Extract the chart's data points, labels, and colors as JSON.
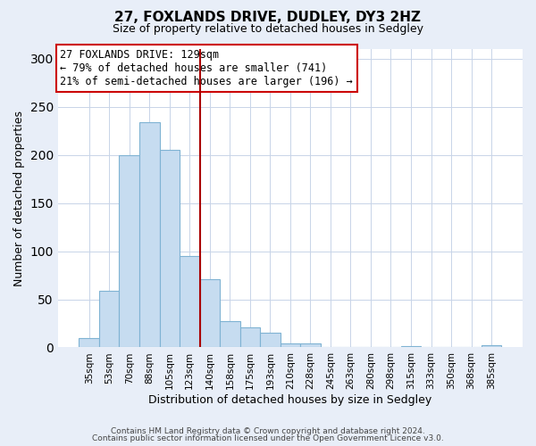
{
  "title": "27, FOXLANDS DRIVE, DUDLEY, DY3 2HZ",
  "subtitle": "Size of property relative to detached houses in Sedgley",
  "xlabel": "Distribution of detached houses by size in Sedgley",
  "ylabel": "Number of detached properties",
  "bar_labels": [
    "35sqm",
    "53sqm",
    "70sqm",
    "88sqm",
    "105sqm",
    "123sqm",
    "140sqm",
    "158sqm",
    "175sqm",
    "193sqm",
    "210sqm",
    "228sqm",
    "245sqm",
    "263sqm",
    "280sqm",
    "298sqm",
    "315sqm",
    "333sqm",
    "350sqm",
    "368sqm",
    "385sqm"
  ],
  "bar_values": [
    10,
    59,
    200,
    234,
    205,
    95,
    71,
    27,
    21,
    15,
    4,
    4,
    0,
    0,
    0,
    0,
    1,
    0,
    0,
    0,
    2
  ],
  "bar_color": "#c6dcf0",
  "bar_edgecolor": "#7fb3d3",
  "ylim": [
    0,
    310
  ],
  "yticks": [
    0,
    50,
    100,
    150,
    200,
    250,
    300
  ],
  "vline_x": 5.5,
  "vline_color": "#aa0000",
  "annotation_title": "27 FOXLANDS DRIVE: 129sqm",
  "annotation_line1": "← 79% of detached houses are smaller (741)",
  "annotation_line2": "21% of semi-detached houses are larger (196) →",
  "annotation_box_color": "#cc0000",
  "footer_line1": "Contains HM Land Registry data © Crown copyright and database right 2024.",
  "footer_line2": "Contains public sector information licensed under the Open Government Licence v3.0.",
  "background_color": "#e8eef8",
  "plot_bg_color": "#ffffff"
}
